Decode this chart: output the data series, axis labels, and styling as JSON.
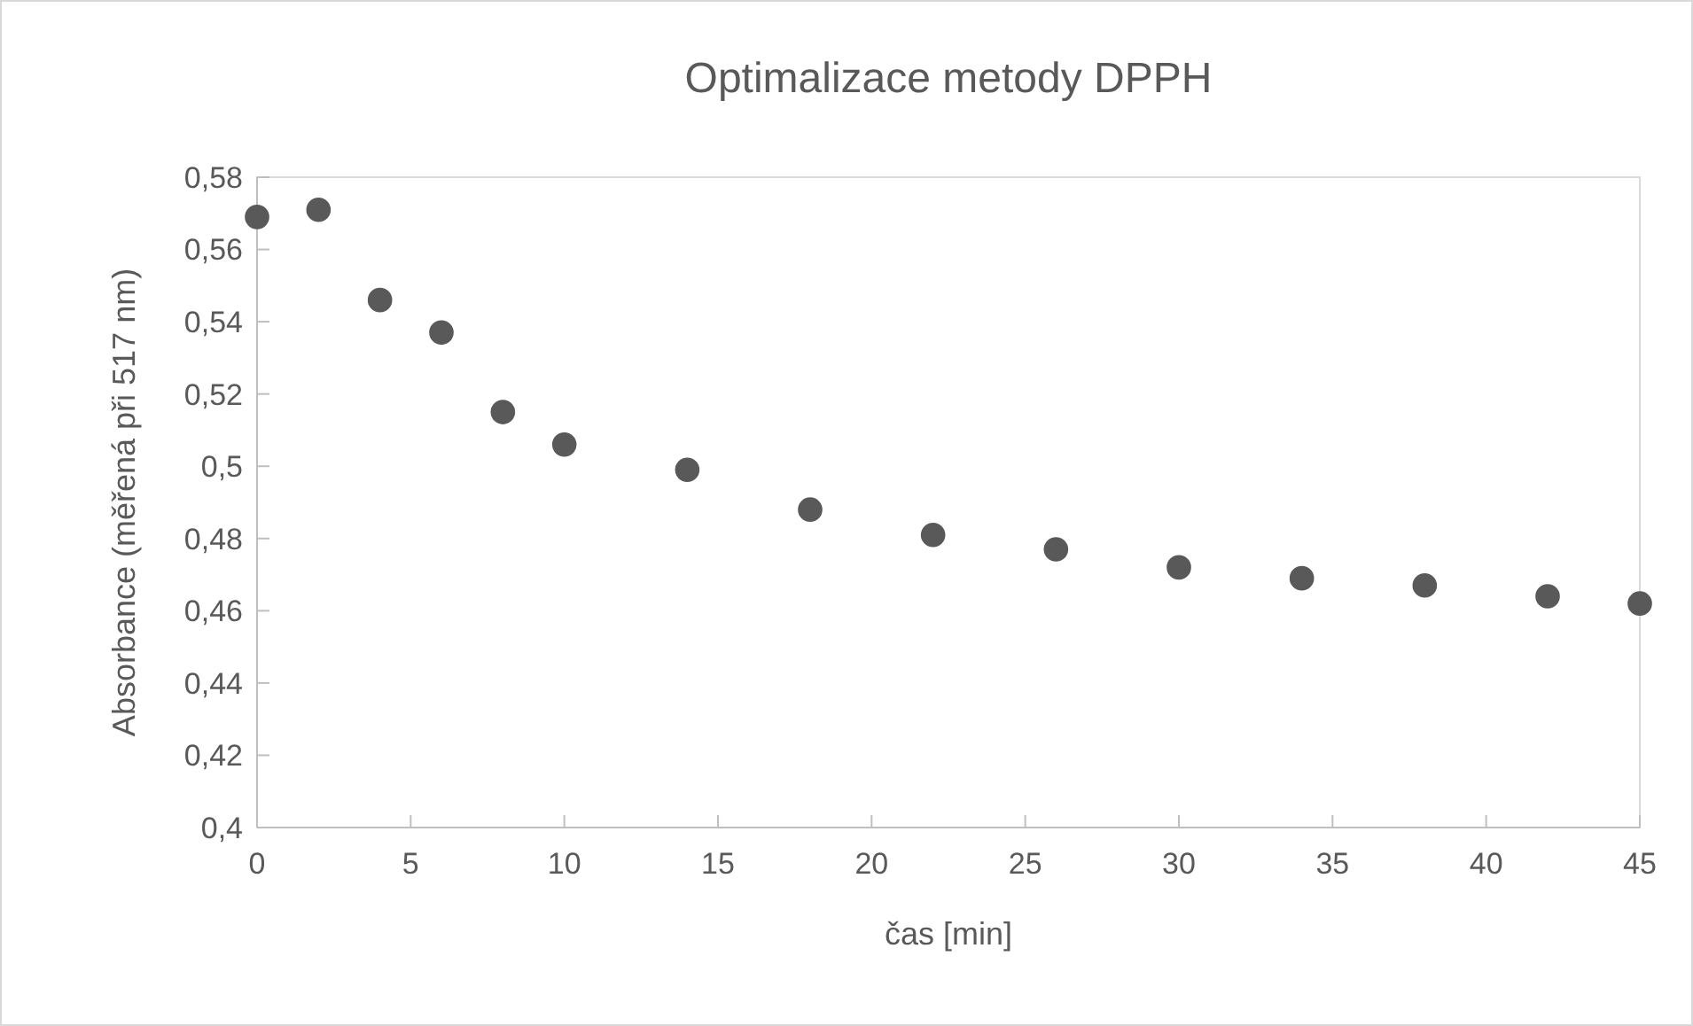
{
  "chart_data": {
    "type": "scatter",
    "title": "Optimalizace metody DPPH",
    "xlabel": "čas [min]",
    "ylabel": "Absorbance (měřená při 517 nm)",
    "x": [
      0,
      2,
      4,
      6,
      8,
      10,
      14,
      18,
      22,
      26,
      30,
      34,
      38,
      42,
      45
    ],
    "series": [
      {
        "color": "#595959",
        "values": [
          0.569,
          0.571,
          0.546,
          0.537,
          0.515,
          0.506,
          0.499,
          0.488,
          0.481,
          0.477,
          0.472,
          0.469,
          0.467,
          0.464,
          0.462
        ]
      }
    ],
    "xlim": [
      0,
      45
    ],
    "xticks": [
      0,
      5,
      10,
      15,
      20,
      25,
      30,
      35,
      40,
      45
    ],
    "ylim": [
      0.4,
      0.58
    ],
    "yticks": [
      {
        "value": 0.4,
        "label": "0,4"
      },
      {
        "value": 0.42,
        "label": "0,42"
      },
      {
        "value": 0.44,
        "label": "0,44"
      },
      {
        "value": 0.46,
        "label": "0,46"
      },
      {
        "value": 0.48,
        "label": "0,48"
      },
      {
        "value": 0.5,
        "label": "0,5"
      },
      {
        "value": 0.52,
        "label": "0,52"
      },
      {
        "value": 0.54,
        "label": "0,54"
      },
      {
        "value": 0.56,
        "label": "0,56"
      },
      {
        "value": 0.58,
        "label": "0,58"
      }
    ],
    "grid": false,
    "marker": "circle"
  }
}
